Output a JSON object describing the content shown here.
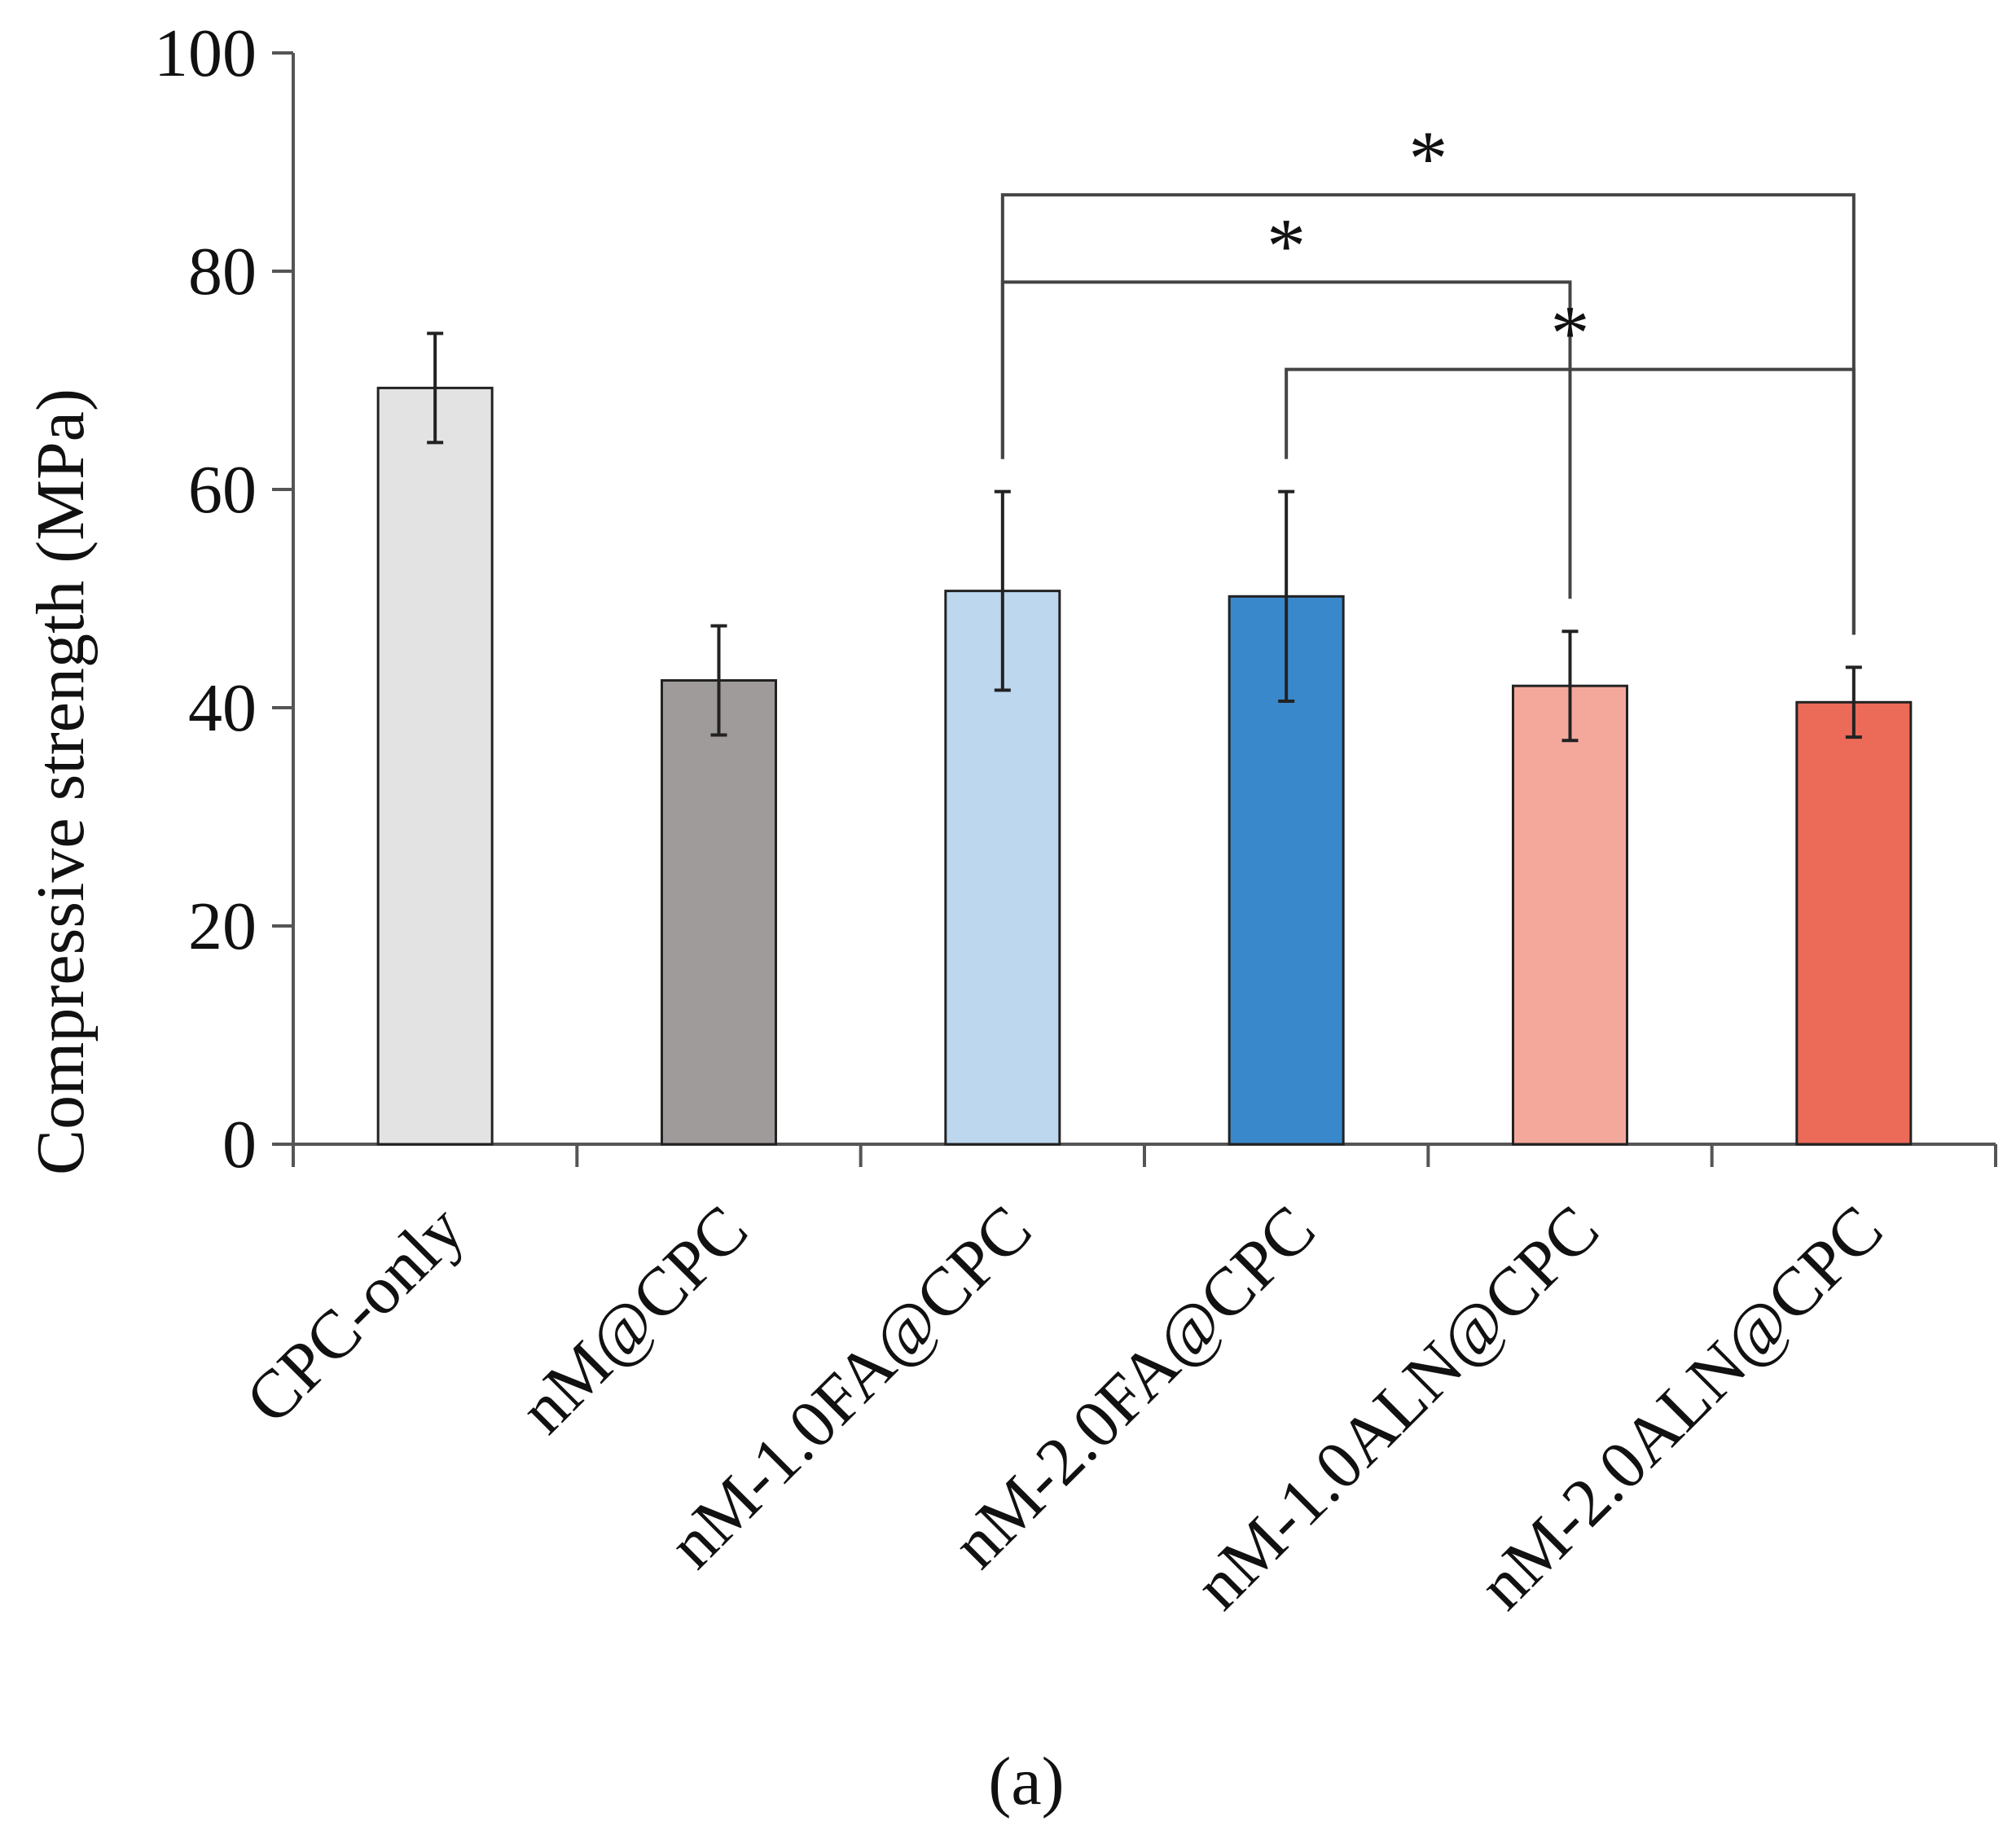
{
  "chart_data": {
    "type": "bar",
    "ylabel": "Compressive strength (MPa)",
    "xlabel": "",
    "ylim": [
      0,
      100
    ],
    "yticks": [
      0,
      20,
      40,
      60,
      80,
      100
    ],
    "categories": [
      "CPC-only",
      "nM@CPC",
      "nM-1.0FA@CPC",
      "nM-2.0FA@CPC",
      "nM-1.0ALN@CPC",
      "nM-2.0ALN@CPC"
    ],
    "values": [
      69.3,
      42.5,
      50.7,
      50.2,
      42.0,
      40.5
    ],
    "errors": [
      5.0,
      5.0,
      9.1,
      9.6,
      5.0,
      3.2
    ],
    "colors": [
      "#e4e3e4",
      "#a09b9b",
      "#bdd7ee",
      "#3a88cc",
      "#f4a89c",
      "#ec6a58"
    ],
    "significance": [
      {
        "from": 2,
        "to": 5,
        "level": 87.0,
        "label": "*"
      },
      {
        "from": 2,
        "to": 4,
        "level": 79.0,
        "label": "*"
      },
      {
        "from": 3,
        "to": 5,
        "level": 71.0,
        "label": "*"
      }
    ],
    "caption": "(a)"
  }
}
